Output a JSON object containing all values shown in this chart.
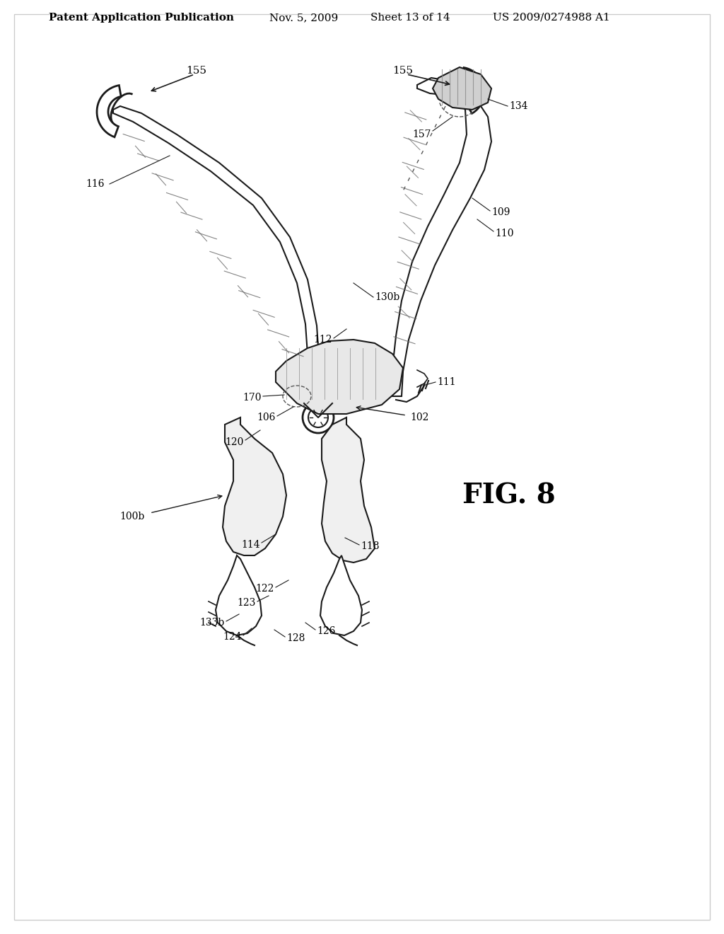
{
  "background_color": "#ffffff",
  "title_text": "Patent Application Publication",
  "title_date": "Nov. 5, 2009",
  "title_sheet": "Sheet 13 of 14",
  "title_patent": "US 2009/0274988 A1",
  "fig_label": "FIG. 8",
  "labels": {
    "155_left": "155",
    "155_right": "155",
    "116": "116",
    "134": "134",
    "157": "157",
    "109": "109",
    "110": "110",
    "130b": "130b",
    "112": "112",
    "111": "111",
    "170": "170",
    "106": "106",
    "102": "102",
    "120": "120",
    "100b": "100b",
    "114": "114",
    "118": "118",
    "122": "122",
    "123": "123",
    "133b": "133b",
    "124": "124",
    "128": "128",
    "126": "126"
  },
  "line_color": "#1a1a1a",
  "dashed_color": "#444444",
  "hatch_color": "#555555",
  "text_color": "#000000"
}
